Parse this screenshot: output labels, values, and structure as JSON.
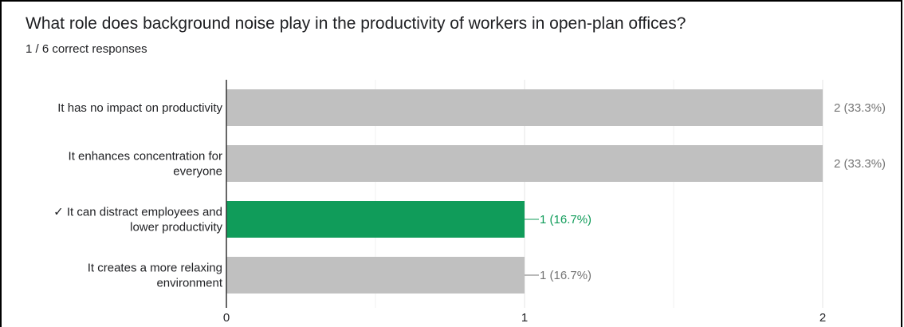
{
  "question": {
    "title": "What role does background noise play in the productivity of workers in open-plan offices?",
    "summary": "1 / 6 correct responses"
  },
  "colors": {
    "correct": "#109c5a",
    "default": "#c0c0c0",
    "text": "#202124",
    "value_text": "#757575",
    "grid": "#e6e6e6",
    "axis": "#333333"
  },
  "chart_data": {
    "type": "bar",
    "orientation": "horizontal",
    "title": "What role does background noise play in the productivity of workers in open-plan offices?",
    "subtitle": "1 / 6 correct responses",
    "categories": [
      "It has no impact on productivity",
      "It enhances concentration for everyone",
      "✓ It can distract employees and lower productivity",
      "It creates a more relaxing environment"
    ],
    "category_lines": [
      [
        "It has no impact on productivity"
      ],
      [
        "It enhances concentration for",
        "everyone"
      ],
      [
        "✓ It can distract employees and",
        "lower productivity"
      ],
      [
        "It creates a more relaxing",
        "environment"
      ]
    ],
    "values": [
      2,
      2,
      1,
      1
    ],
    "value_labels": [
      "2 (33.3%)",
      "2 (33.3%)",
      "1 (16.7%)",
      "1 (16.7%)"
    ],
    "correct": [
      false,
      false,
      true,
      false
    ],
    "xlim": [
      0,
      2
    ],
    "xticks": [
      0,
      1,
      2
    ],
    "grid": true,
    "legend": "none"
  }
}
